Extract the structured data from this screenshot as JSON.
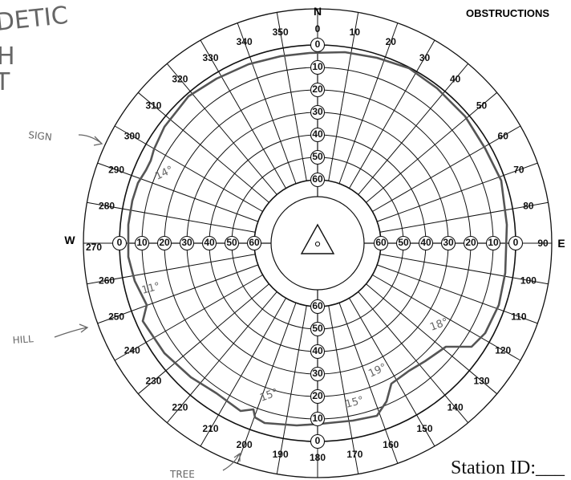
{
  "header": {
    "title": "OBSTRUCTIONS"
  },
  "compass": {
    "north": "N",
    "east": "E",
    "west": "W"
  },
  "azimuth_labels": [
    "0",
    "10",
    "20",
    "30",
    "40",
    "50",
    "60",
    "70",
    "80",
    "90",
    "100",
    "110",
    "120",
    "130",
    "140",
    "150",
    "160",
    "170",
    "180",
    "190",
    "200",
    "210",
    "220",
    "230",
    "240",
    "250",
    "260",
    "270",
    "280",
    "290",
    "300",
    "310",
    "320",
    "330",
    "340",
    "350"
  ],
  "elevation_labels": [
    "0",
    "10",
    "20",
    "30",
    "40",
    "50",
    "60"
  ],
  "annotations": {
    "sign": "SIGN",
    "hill": "HILL",
    "tree": "TREE",
    "angle_14": "14°",
    "angle_11": "11°",
    "angle_18": "18°",
    "angle_19": "19°",
    "angle_15a": "15°",
    "angle_15b": "15°"
  },
  "corner_handwriting": {
    "line1": "DETIC",
    "line2": "H",
    "line3": "T"
  },
  "footer": {
    "station_label": "Station ID:___"
  },
  "colors": {
    "grid": "#111111",
    "outline": "#555555",
    "handwriting": "#666666"
  }
}
